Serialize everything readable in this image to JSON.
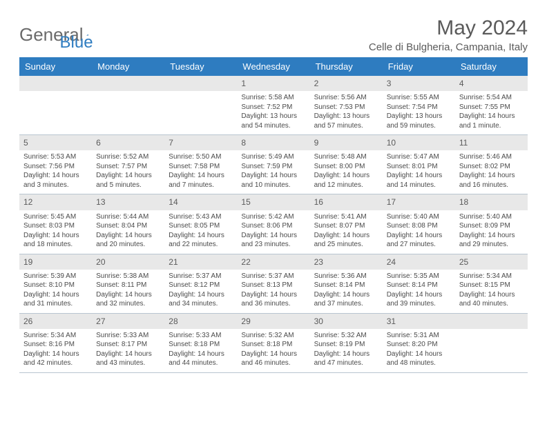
{
  "logo": {
    "part1": "General",
    "part2": "Blue"
  },
  "title": "May 2024",
  "location": "Celle di Bulgheria, Campania, Italy",
  "colors": {
    "header_bg": "#2e7cc0",
    "header_text": "#ffffff",
    "daynum_bg": "#e8e8e8",
    "text": "#4a4a4a",
    "border": "#b8c5d0"
  },
  "day_names": [
    "Sunday",
    "Monday",
    "Tuesday",
    "Wednesday",
    "Thursday",
    "Friday",
    "Saturday"
  ],
  "weeks": [
    [
      null,
      null,
      null,
      {
        "n": "1",
        "sr": "Sunrise: 5:58 AM",
        "ss": "Sunset: 7:52 PM",
        "dl": "Daylight: 13 hours and 54 minutes."
      },
      {
        "n": "2",
        "sr": "Sunrise: 5:56 AM",
        "ss": "Sunset: 7:53 PM",
        "dl": "Daylight: 13 hours and 57 minutes."
      },
      {
        "n": "3",
        "sr": "Sunrise: 5:55 AM",
        "ss": "Sunset: 7:54 PM",
        "dl": "Daylight: 13 hours and 59 minutes."
      },
      {
        "n": "4",
        "sr": "Sunrise: 5:54 AM",
        "ss": "Sunset: 7:55 PM",
        "dl": "Daylight: 14 hours and 1 minute."
      }
    ],
    [
      {
        "n": "5",
        "sr": "Sunrise: 5:53 AM",
        "ss": "Sunset: 7:56 PM",
        "dl": "Daylight: 14 hours and 3 minutes."
      },
      {
        "n": "6",
        "sr": "Sunrise: 5:52 AM",
        "ss": "Sunset: 7:57 PM",
        "dl": "Daylight: 14 hours and 5 minutes."
      },
      {
        "n": "7",
        "sr": "Sunrise: 5:50 AM",
        "ss": "Sunset: 7:58 PM",
        "dl": "Daylight: 14 hours and 7 minutes."
      },
      {
        "n": "8",
        "sr": "Sunrise: 5:49 AM",
        "ss": "Sunset: 7:59 PM",
        "dl": "Daylight: 14 hours and 10 minutes."
      },
      {
        "n": "9",
        "sr": "Sunrise: 5:48 AM",
        "ss": "Sunset: 8:00 PM",
        "dl": "Daylight: 14 hours and 12 minutes."
      },
      {
        "n": "10",
        "sr": "Sunrise: 5:47 AM",
        "ss": "Sunset: 8:01 PM",
        "dl": "Daylight: 14 hours and 14 minutes."
      },
      {
        "n": "11",
        "sr": "Sunrise: 5:46 AM",
        "ss": "Sunset: 8:02 PM",
        "dl": "Daylight: 14 hours and 16 minutes."
      }
    ],
    [
      {
        "n": "12",
        "sr": "Sunrise: 5:45 AM",
        "ss": "Sunset: 8:03 PM",
        "dl": "Daylight: 14 hours and 18 minutes."
      },
      {
        "n": "13",
        "sr": "Sunrise: 5:44 AM",
        "ss": "Sunset: 8:04 PM",
        "dl": "Daylight: 14 hours and 20 minutes."
      },
      {
        "n": "14",
        "sr": "Sunrise: 5:43 AM",
        "ss": "Sunset: 8:05 PM",
        "dl": "Daylight: 14 hours and 22 minutes."
      },
      {
        "n": "15",
        "sr": "Sunrise: 5:42 AM",
        "ss": "Sunset: 8:06 PM",
        "dl": "Daylight: 14 hours and 23 minutes."
      },
      {
        "n": "16",
        "sr": "Sunrise: 5:41 AM",
        "ss": "Sunset: 8:07 PM",
        "dl": "Daylight: 14 hours and 25 minutes."
      },
      {
        "n": "17",
        "sr": "Sunrise: 5:40 AM",
        "ss": "Sunset: 8:08 PM",
        "dl": "Daylight: 14 hours and 27 minutes."
      },
      {
        "n": "18",
        "sr": "Sunrise: 5:40 AM",
        "ss": "Sunset: 8:09 PM",
        "dl": "Daylight: 14 hours and 29 minutes."
      }
    ],
    [
      {
        "n": "19",
        "sr": "Sunrise: 5:39 AM",
        "ss": "Sunset: 8:10 PM",
        "dl": "Daylight: 14 hours and 31 minutes."
      },
      {
        "n": "20",
        "sr": "Sunrise: 5:38 AM",
        "ss": "Sunset: 8:11 PM",
        "dl": "Daylight: 14 hours and 32 minutes."
      },
      {
        "n": "21",
        "sr": "Sunrise: 5:37 AM",
        "ss": "Sunset: 8:12 PM",
        "dl": "Daylight: 14 hours and 34 minutes."
      },
      {
        "n": "22",
        "sr": "Sunrise: 5:37 AM",
        "ss": "Sunset: 8:13 PM",
        "dl": "Daylight: 14 hours and 36 minutes."
      },
      {
        "n": "23",
        "sr": "Sunrise: 5:36 AM",
        "ss": "Sunset: 8:14 PM",
        "dl": "Daylight: 14 hours and 37 minutes."
      },
      {
        "n": "24",
        "sr": "Sunrise: 5:35 AM",
        "ss": "Sunset: 8:14 PM",
        "dl": "Daylight: 14 hours and 39 minutes."
      },
      {
        "n": "25",
        "sr": "Sunrise: 5:34 AM",
        "ss": "Sunset: 8:15 PM",
        "dl": "Daylight: 14 hours and 40 minutes."
      }
    ],
    [
      {
        "n": "26",
        "sr": "Sunrise: 5:34 AM",
        "ss": "Sunset: 8:16 PM",
        "dl": "Daylight: 14 hours and 42 minutes."
      },
      {
        "n": "27",
        "sr": "Sunrise: 5:33 AM",
        "ss": "Sunset: 8:17 PM",
        "dl": "Daylight: 14 hours and 43 minutes."
      },
      {
        "n": "28",
        "sr": "Sunrise: 5:33 AM",
        "ss": "Sunset: 8:18 PM",
        "dl": "Daylight: 14 hours and 44 minutes."
      },
      {
        "n": "29",
        "sr": "Sunrise: 5:32 AM",
        "ss": "Sunset: 8:18 PM",
        "dl": "Daylight: 14 hours and 46 minutes."
      },
      {
        "n": "30",
        "sr": "Sunrise: 5:32 AM",
        "ss": "Sunset: 8:19 PM",
        "dl": "Daylight: 14 hours and 47 minutes."
      },
      {
        "n": "31",
        "sr": "Sunrise: 5:31 AM",
        "ss": "Sunset: 8:20 PM",
        "dl": "Daylight: 14 hours and 48 minutes."
      },
      null
    ]
  ]
}
